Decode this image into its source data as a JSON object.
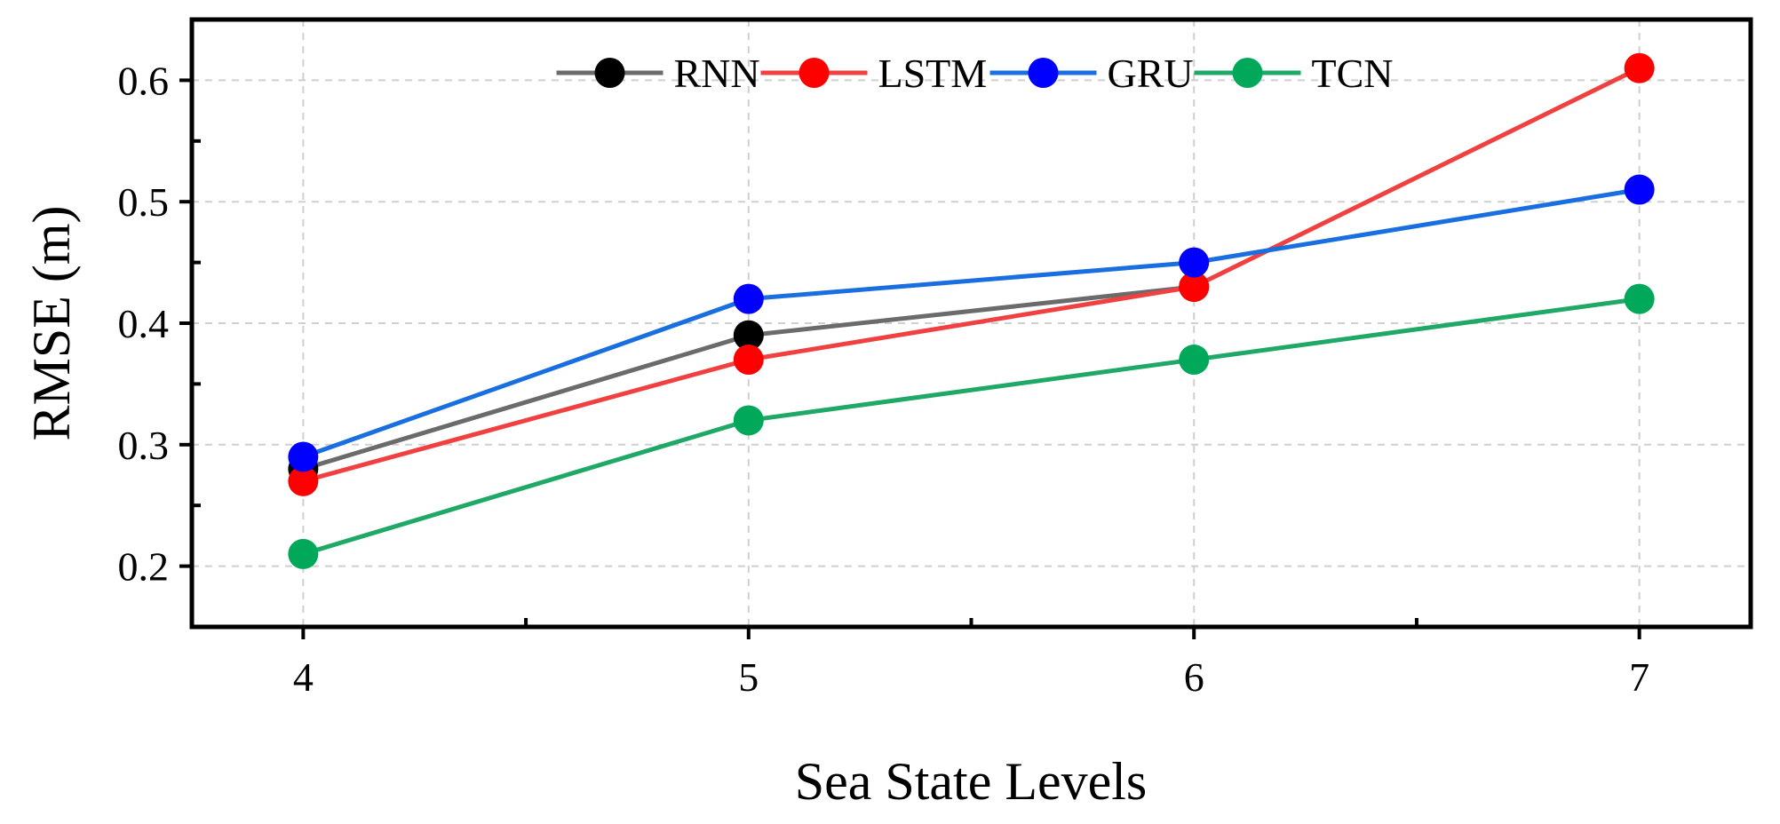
{
  "chart_data": {
    "type": "line",
    "title": "",
    "xlabel": "Sea State Levels",
    "ylabel": "RMSE (m)",
    "x": [
      4,
      5,
      6,
      7
    ],
    "x_tick_labels": [
      "4",
      "5",
      "6",
      "7"
    ],
    "xlim": [
      3.75,
      7.25
    ],
    "ylim": [
      0.15,
      0.65
    ],
    "y_ticks": [
      0.2,
      0.3,
      0.4,
      0.5,
      0.6
    ],
    "y_tick_labels": [
      "0.2",
      "0.3",
      "0.4",
      "0.5",
      "0.6"
    ],
    "y_minor_ticks": [
      0.25,
      0.35,
      0.45,
      0.55
    ],
    "x_minor_ticks": [
      4.5,
      5.5,
      6.5
    ],
    "grid": true,
    "legend_position": "top-center",
    "series": [
      {
        "name": "RNN",
        "values": [
          0.28,
          0.39,
          0.43,
          null
        ],
        "line_color": "#6b6b6b",
        "marker_color": "#000000"
      },
      {
        "name": "LSTM",
        "values": [
          0.27,
          0.37,
          0.43,
          0.61
        ],
        "line_color": "#f04040",
        "marker_color": "#ff0000"
      },
      {
        "name": "GRU",
        "values": [
          0.29,
          0.42,
          0.45,
          0.51
        ],
        "line_color": "#1a6fe0",
        "marker_color": "#0000ff"
      },
      {
        "name": "TCN",
        "values": [
          0.21,
          0.32,
          0.37,
          0.42
        ],
        "line_color": "#1fa866",
        "marker_color": "#00a85a"
      }
    ]
  }
}
